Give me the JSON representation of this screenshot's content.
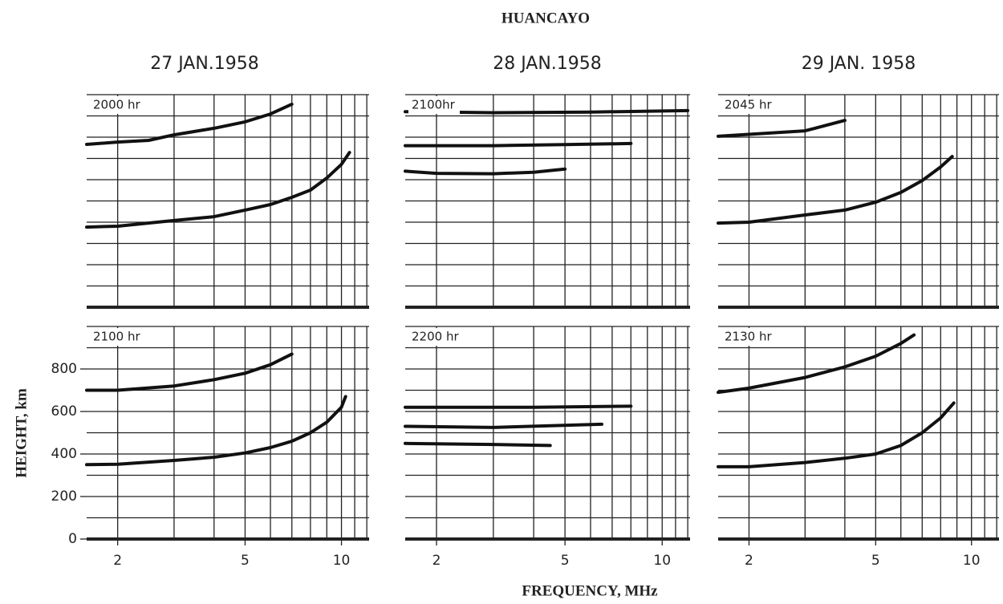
{
  "title": "HUANCAYO",
  "xlabel": "FREQUENCY, MHz",
  "ylabel": "HEIGHT, km",
  "dates": [
    "27 JAN.1958",
    "28 JAN.1958",
    "29 JAN. 1958"
  ],
  "chart_data": [
    {
      "type": "line",
      "title": "2000 hr",
      "xscale": "log",
      "xlim": [
        1.6,
        12.2
      ],
      "ylim": [
        0,
        1000
      ],
      "xgrid": [
        2,
        3,
        4,
        5,
        6,
        7,
        8,
        9,
        10,
        11,
        12
      ],
      "ygrid": [
        0,
        100,
        200,
        300,
        400,
        500,
        600,
        700,
        800,
        900,
        1000
      ],
      "series": [
        {
          "color": "#111111",
          "x": [
            1.6,
            2,
            3,
            4,
            5,
            6,
            7,
            8,
            9,
            10,
            10.6
          ],
          "values": [
            377,
            381,
            408,
            426,
            457,
            483,
            517,
            551,
            608,
            672,
            728
          ]
        },
        {
          "color": "#111111",
          "x": [
            1.6,
            2,
            2.5,
            3,
            4,
            5,
            6,
            7
          ],
          "values": [
            766,
            777,
            785,
            811,
            842,
            872,
            909,
            955
          ]
        }
      ]
    },
    {
      "type": "line",
      "title": "2100hr",
      "xscale": "log",
      "xlim": [
        1.6,
        12.2
      ],
      "ylim": [
        0,
        1000
      ],
      "xgrid": [
        2,
        3,
        4,
        5,
        6,
        7,
        8,
        9,
        10,
        11,
        12
      ],
      "ygrid": [
        0,
        100,
        200,
        300,
        400,
        500,
        600,
        700,
        800,
        900,
        1000
      ],
      "series": [
        {
          "color": "#111111",
          "x": [
            1.6,
            2,
            3,
            4,
            5
          ],
          "values": [
            640,
            630,
            628,
            635,
            650
          ]
        },
        {
          "color": "#111111",
          "x": [
            1.6,
            3,
            5,
            8
          ],
          "values": [
            760,
            760,
            765,
            770
          ]
        },
        {
          "color": "#111111",
          "x": [
            1.6,
            3,
            6,
            12
          ],
          "values": [
            920,
            915,
            918,
            925
          ]
        }
      ]
    },
    {
      "type": "line",
      "title": "2045 hr",
      "xscale": "log",
      "xlim": [
        1.6,
        12.2
      ],
      "ylim": [
        0,
        1000
      ],
      "xgrid": [
        2,
        3,
        4,
        5,
        6,
        7,
        8,
        9,
        10,
        11,
        12
      ],
      "ygrid": [
        0,
        100,
        200,
        300,
        400,
        500,
        600,
        700,
        800,
        900,
        1000
      ],
      "series": [
        {
          "color": "#111111",
          "x": [
            1.6,
            2,
            3,
            4,
            5,
            6,
            7,
            8,
            8.7
          ],
          "values": [
            396,
            400,
            434,
            457,
            494,
            540,
            596,
            660,
            709
          ]
        },
        {
          "color": "#111111",
          "x": [
            1.6,
            3,
            4
          ],
          "values": [
            804,
            830,
            879
          ]
        }
      ]
    },
    {
      "type": "line",
      "title": "2100 hr",
      "xscale": "log",
      "xlim": [
        1.6,
        12.2
      ],
      "ylim": [
        0,
        1000
      ],
      "xgrid": [
        2,
        3,
        4,
        5,
        6,
        7,
        8,
        9,
        10,
        11,
        12
      ],
      "ygrid": [
        0,
        100,
        200,
        300,
        400,
        500,
        600,
        700,
        800,
        900,
        1000
      ],
      "xticks": [
        2,
        5,
        10
      ],
      "yticks": [
        0,
        200,
        400,
        600,
        800
      ],
      "series": [
        {
          "color": "#111111",
          "x": [
            1.6,
            2,
            3,
            4,
            5,
            6,
            7,
            8,
            9,
            10,
            10.3
          ],
          "values": [
            350,
            352,
            370,
            385,
            405,
            430,
            460,
            500,
            550,
            620,
            670
          ]
        },
        {
          "color": "#111111",
          "x": [
            1.6,
            2,
            3,
            4,
            5,
            6,
            7
          ],
          "values": [
            700,
            700,
            720,
            750,
            780,
            820,
            870
          ]
        }
      ]
    },
    {
      "type": "line",
      "title": "2200 hr",
      "xscale": "log",
      "xlim": [
        1.6,
        12.2
      ],
      "ylim": [
        0,
        1000
      ],
      "xgrid": [
        2,
        3,
        4,
        5,
        6,
        7,
        8,
        9,
        10,
        11,
        12
      ],
      "ygrid": [
        0,
        100,
        200,
        300,
        400,
        500,
        600,
        700,
        800,
        900,
        1000
      ],
      "xticks": [
        2,
        5,
        10
      ],
      "series": [
        {
          "color": "#111111",
          "x": [
            1.6,
            3,
            4.5
          ],
          "values": [
            450,
            445,
            440
          ]
        },
        {
          "color": "#111111",
          "x": [
            1.6,
            3,
            6.5
          ],
          "values": [
            530,
            525,
            540
          ]
        },
        {
          "color": "#111111",
          "x": [
            1.6,
            4,
            8
          ],
          "values": [
            620,
            620,
            625
          ]
        }
      ]
    },
    {
      "type": "line",
      "title": "2130 hr",
      "xscale": "log",
      "xlim": [
        1.6,
        12.2
      ],
      "ylim": [
        0,
        1000
      ],
      "xgrid": [
        2,
        3,
        4,
        5,
        6,
        7,
        8,
        9,
        10,
        11,
        12
      ],
      "ygrid": [
        0,
        100,
        200,
        300,
        400,
        500,
        600,
        700,
        800,
        900,
        1000
      ],
      "xticks": [
        2,
        5,
        10
      ],
      "series": [
        {
          "color": "#111111",
          "x": [
            1.6,
            2,
            3,
            4,
            5,
            6,
            7,
            8,
            8.8
          ],
          "values": [
            340,
            340,
            360,
            380,
            400,
            440,
            500,
            570,
            640
          ]
        },
        {
          "color": "#111111",
          "x": [
            1.6,
            2,
            3,
            4,
            5,
            6,
            6.6
          ],
          "values": [
            690,
            710,
            760,
            810,
            860,
            920,
            960
          ]
        }
      ]
    }
  ]
}
